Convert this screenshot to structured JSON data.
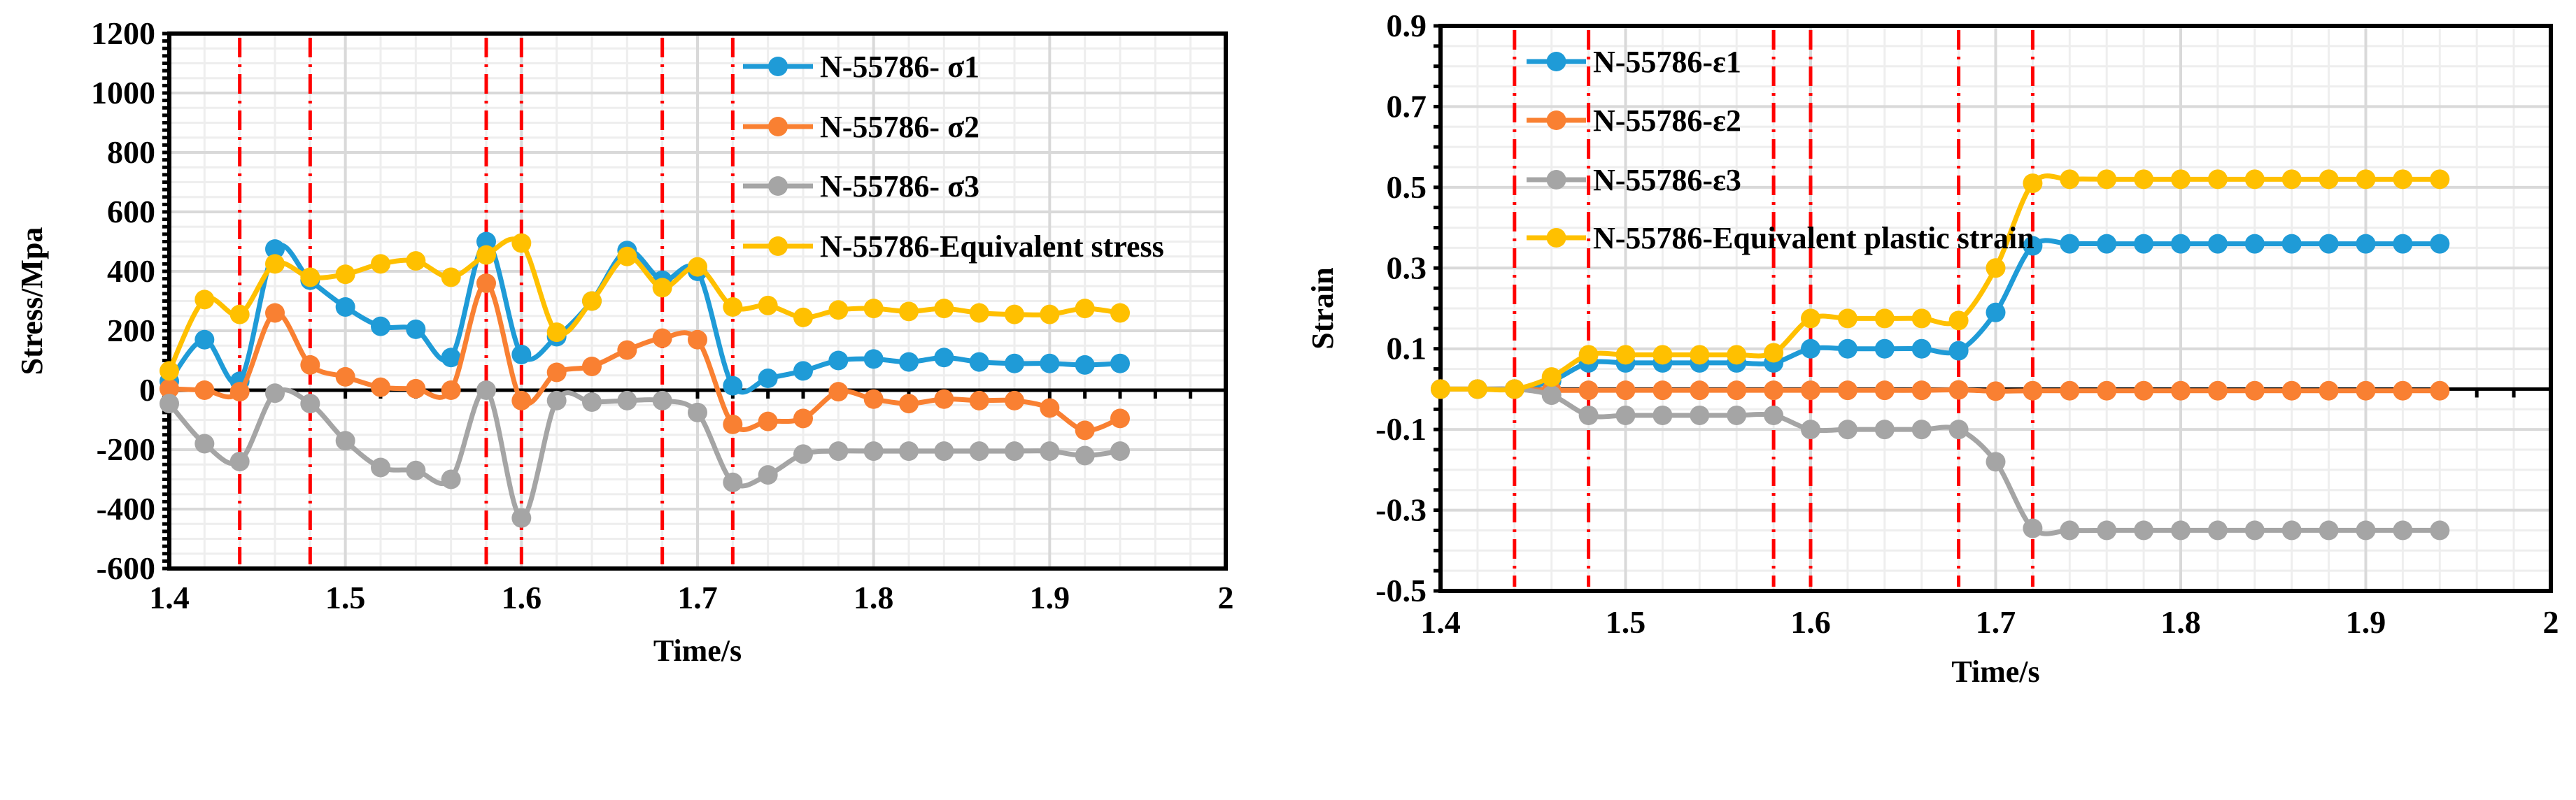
{
  "chart_data": [
    {
      "type": "line",
      "xlabel": "Time/s",
      "ylabel": "Stress/Mpa",
      "xlim": [
        1.4,
        2
      ],
      "ylim": [
        -600,
        1200
      ],
      "xticks": [
        "1.4",
        "1.5",
        "1.6",
        "1.7",
        "1.8",
        "1.9",
        "2"
      ],
      "yticks": [
        "-600",
        "-400",
        "-200",
        "0",
        "200",
        "400",
        "600",
        "800",
        "1000",
        "1200"
      ],
      "grid": true,
      "legend_position": "top-right",
      "vlines": [
        1.44,
        1.48,
        1.58,
        1.6,
        1.68,
        1.72
      ],
      "x": [
        1.4,
        1.42,
        1.44,
        1.46,
        1.48,
        1.5,
        1.52,
        1.54,
        1.56,
        1.58,
        1.6,
        1.62,
        1.64,
        1.66,
        1.68,
        1.7,
        1.72,
        1.74,
        1.76,
        1.78,
        1.8,
        1.82,
        1.84,
        1.86,
        1.88,
        1.9,
        1.92,
        1.94
      ],
      "series": [
        {
          "name": "N-55786- σ1",
          "color": "#1F9BD7",
          "values": [
            30,
            170,
            30,
            475,
            370,
            280,
            215,
            205,
            110,
            500,
            120,
            180,
            300,
            470,
            370,
            400,
            15,
            40,
            65,
            100,
            105,
            95,
            110,
            95,
            90,
            90,
            85,
            90
          ]
        },
        {
          "name": "N-55786- σ2",
          "color": "#F98032",
          "values": [
            5,
            0,
            -5,
            260,
            85,
            45,
            10,
            5,
            0,
            360,
            -35,
            60,
            80,
            135,
            175,
            170,
            -115,
            -105,
            -95,
            -5,
            -30,
            -45,
            -30,
            -35,
            -35,
            -60,
            -135,
            -95
          ]
        },
        {
          "name": "N-55786- σ3",
          "color": "#A5A5A5",
          "values": [
            -45,
            -180,
            -240,
            -10,
            -45,
            -170,
            -260,
            -270,
            -300,
            0,
            -430,
            -35,
            -40,
            -35,
            -35,
            -75,
            -310,
            -285,
            -215,
            -205,
            -205,
            -205,
            -205,
            -205,
            -205,
            -205,
            -220,
            -205
          ]
        },
        {
          "name": "N-55786-Equivalent stress",
          "color": "#FFC000",
          "values": [
            65,
            305,
            255,
            425,
            380,
            390,
            425,
            435,
            380,
            455,
            495,
            195,
            300,
            450,
            345,
            415,
            280,
            285,
            245,
            270,
            275,
            265,
            275,
            260,
            255,
            255,
            275,
            260
          ]
        }
      ]
    },
    {
      "type": "line",
      "xlabel": "Time/s",
      "ylabel": "Strain",
      "xlim": [
        1.4,
        2
      ],
      "ylim": [
        -0.5,
        0.9
      ],
      "xticks": [
        "1.4",
        "1.5",
        "1.6",
        "1.7",
        "1.8",
        "1.9",
        "2"
      ],
      "yticks": [
        "-0.5",
        "-0.3",
        "-0.1",
        "0.1",
        "0.3",
        "0.5",
        "0.7",
        "0.9"
      ],
      "grid": true,
      "legend_position": "top-left",
      "vlines": [
        1.44,
        1.48,
        1.58,
        1.6,
        1.68,
        1.72
      ],
      "x": [
        1.4,
        1.42,
        1.44,
        1.46,
        1.48,
        1.5,
        1.52,
        1.54,
        1.56,
        1.58,
        1.6,
        1.62,
        1.64,
        1.66,
        1.68,
        1.7,
        1.72,
        1.74,
        1.76,
        1.78,
        1.8,
        1.82,
        1.84,
        1.86,
        1.88,
        1.9,
        1.92,
        1.94
      ],
      "series": [
        {
          "name": "N-55786-ε1",
          "color": "#1F9BD7",
          "values": [
            0,
            0,
            0,
            0.02,
            0.065,
            0.065,
            0.065,
            0.065,
            0.065,
            0.065,
            0.1,
            0.1,
            0.1,
            0.1,
            0.095,
            0.19,
            0.355,
            0.36,
            0.36,
            0.36,
            0.36,
            0.36,
            0.36,
            0.36,
            0.36,
            0.36,
            0.36,
            0.36
          ]
        },
        {
          "name": "N-55786-ε2",
          "color": "#F98032",
          "values": [
            0,
            0,
            0,
            -0.003,
            -0.003,
            -0.003,
            -0.003,
            -0.003,
            -0.003,
            -0.003,
            -0.003,
            -0.003,
            -0.003,
            -0.003,
            -0.002,
            -0.005,
            -0.004,
            -0.004,
            -0.004,
            -0.004,
            -0.004,
            -0.004,
            -0.004,
            -0.004,
            -0.004,
            -0.004,
            -0.004,
            -0.004
          ]
        },
        {
          "name": "N-55786-ε3",
          "color": "#A5A5A5",
          "values": [
            0,
            0,
            0,
            -0.015,
            -0.065,
            -0.065,
            -0.065,
            -0.065,
            -0.065,
            -0.065,
            -0.1,
            -0.1,
            -0.1,
            -0.1,
            -0.1,
            -0.18,
            -0.345,
            -0.35,
            -0.35,
            -0.35,
            -0.35,
            -0.35,
            -0.35,
            -0.35,
            -0.35,
            -0.35,
            -0.35,
            -0.35
          ]
        },
        {
          "name": "N-55786-Equivalent plastic strain",
          "color": "#FFC000",
          "values": [
            0,
            0,
            0,
            0.03,
            0.085,
            0.085,
            0.085,
            0.085,
            0.085,
            0.09,
            0.175,
            0.175,
            0.175,
            0.175,
            0.17,
            0.3,
            0.51,
            0.52,
            0.52,
            0.52,
            0.52,
            0.52,
            0.52,
            0.52,
            0.52,
            0.52,
            0.52,
            0.52
          ]
        }
      ]
    }
  ]
}
